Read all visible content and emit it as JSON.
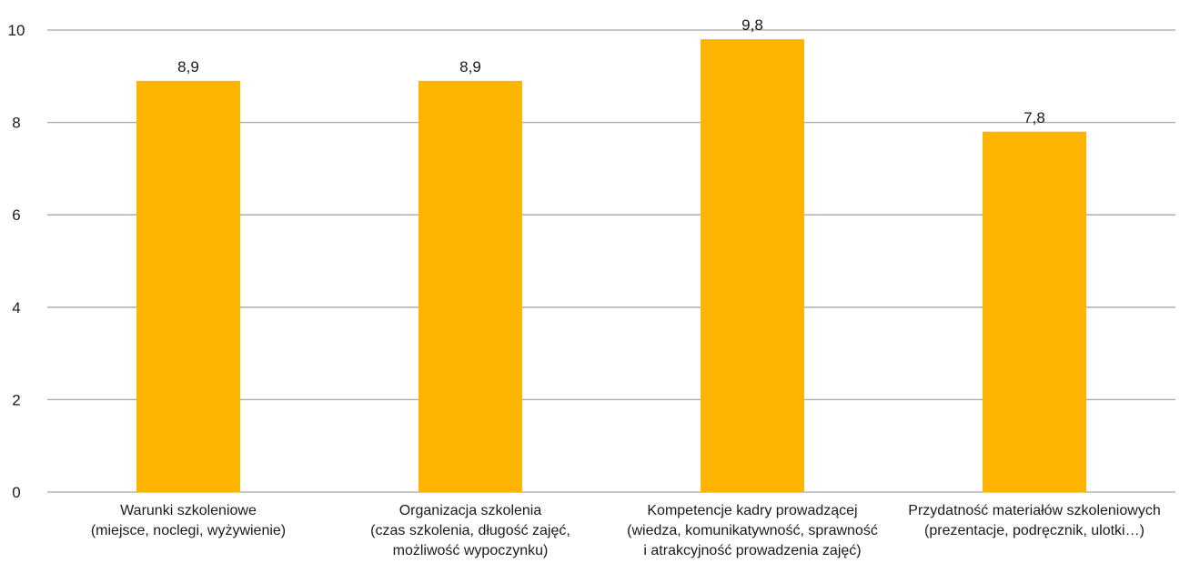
{
  "chart_data": {
    "type": "bar",
    "categories": [
      [
        "Warunki szkoleniowe",
        "(miejsce, noclegi, wyżywienie)"
      ],
      [
        "Organizacja szkolenia",
        "(czas szkolenia, długość zajęć,",
        "możliwość wypoczynku)"
      ],
      [
        "Kompetencje kadry prowadzącej",
        "(wiedza, komunikatywność, sprawność",
        "i atrakcyjność prowadzenia zajęć)"
      ],
      [
        "Przydatność materiałów szkoleniowych",
        "(prezentacje, podręcznik, ulotki…)"
      ]
    ],
    "values": [
      8.9,
      8.9,
      9.8,
      7.8
    ],
    "value_labels": [
      "8,9",
      "8,9",
      "9,8",
      "7,8"
    ],
    "yticks": [
      0,
      2,
      4,
      6,
      8,
      10
    ],
    "ylim": [
      0,
      10
    ],
    "grid": true,
    "bar_color": "#FFB400"
  }
}
